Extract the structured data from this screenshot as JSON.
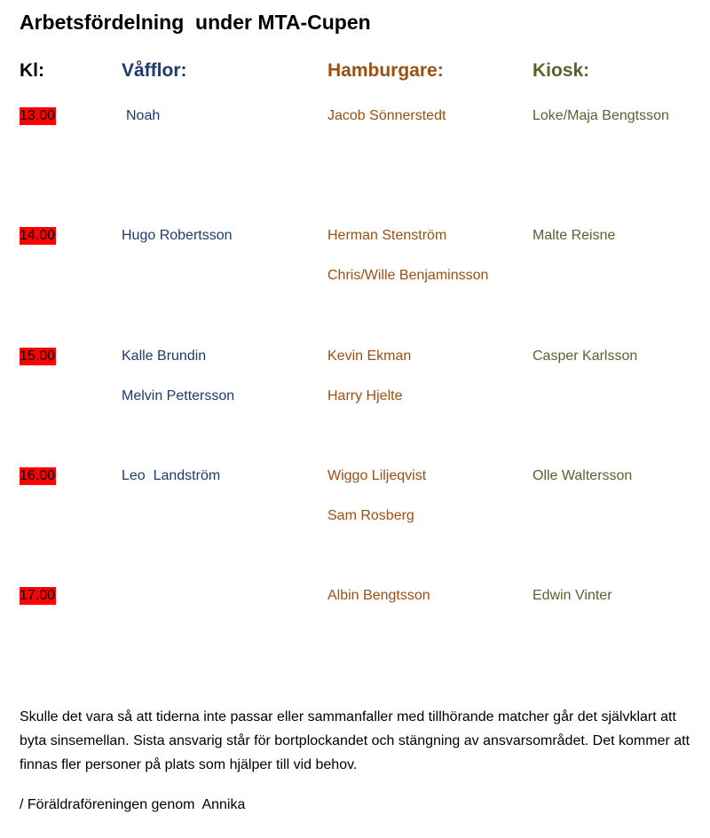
{
  "title": "Arbetsfördelning  under MTA-Cupen",
  "headers": {
    "kl": "Kl:",
    "vafflor": "Våfflor:",
    "hamburgare": "Hamburgare:",
    "kiosk": "Kiosk:"
  },
  "colors": {
    "time_highlight": "#ff0000",
    "vafflor": "#1f3a6e",
    "hamburgare": "#9c4f12",
    "kiosk": "#51652d"
  },
  "slots": [
    {
      "time": "13.00",
      "vafflor": [
        "Noah"
      ],
      "hamburgare": [
        "Jacob Sönnerstedt"
      ],
      "kiosk": [
        "Loke/Maja Bengtsson"
      ]
    },
    {
      "time": "14.00",
      "vafflor": [
        "Hugo Robertsson"
      ],
      "hamburgare": [
        "Herman Stenström",
        "Chris/Wille Benjaminsson"
      ],
      "kiosk": [
        "Malte Reisne"
      ]
    },
    {
      "time": "15.00",
      "vafflor": [
        "Kalle Brundin",
        "Melvin Pettersson"
      ],
      "hamburgare": [
        "Kevin Ekman",
        "Harry Hjelte"
      ],
      "kiosk": [
        "Casper Karlsson"
      ]
    },
    {
      "time": "16.00",
      "vafflor": [
        "Leo  Landström"
      ],
      "hamburgare": [
        "Wiggo Liljeqvist",
        "Sam Rosberg"
      ],
      "kiosk": [
        "Olle Waltersson"
      ]
    },
    {
      "time": "17.00",
      "vafflor": [],
      "hamburgare": [
        "Albin Bengtsson"
      ],
      "kiosk": [
        "Edwin Vinter"
      ]
    }
  ],
  "note": "Skulle det vara så att tiderna inte passar eller sammanfaller med tillhörande matcher går det självklart att byta sinsemellan.  Sista ansvarig står för bortplockandet och stängning av ansvarsområdet. Det kommer att finnas fler personer på plats som hjälper till vid behov.",
  "signature": "/ Föräldraföreningen genom  Annika"
}
